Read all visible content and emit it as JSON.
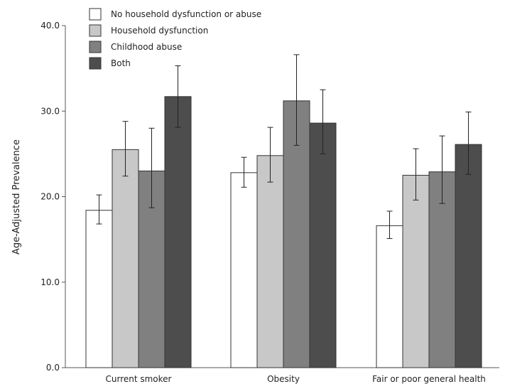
{
  "chart_data": {
    "type": "bar",
    "ylabel": "Age-Adjusted Prevalence",
    "ylim": [
      0,
      40
    ],
    "yticks": [
      "0.0",
      "10.0",
      "20.0",
      "30.0",
      "40.0"
    ],
    "grid": false,
    "legend_position": "top-left",
    "categories": [
      "Current smoker",
      "Obesity",
      "Fair or poor general health"
    ],
    "series": [
      {
        "name": "No household dysfunction or abuse",
        "color": "#ffffff",
        "values": [
          18.4,
          22.8,
          16.6
        ],
        "err_low": [
          16.8,
          21.1,
          15.1
        ],
        "err_high": [
          20.2,
          24.6,
          18.3
        ]
      },
      {
        "name": "Household dysfunction",
        "color": "#c8c8c8",
        "values": [
          25.5,
          24.8,
          22.5
        ],
        "err_low": [
          22.4,
          21.7,
          19.6
        ],
        "err_high": [
          28.8,
          28.1,
          25.6
        ]
      },
      {
        "name": "Childhood abuse",
        "color": "#808080",
        "values": [
          23.0,
          31.2,
          22.9
        ],
        "err_low": [
          18.7,
          26.0,
          19.2
        ],
        "err_high": [
          28.0,
          36.6,
          27.1
        ]
      },
      {
        "name": "Both",
        "color": "#4d4d4d",
        "values": [
          31.7,
          28.6,
          26.1
        ],
        "err_low": [
          28.1,
          25.0,
          22.6
        ],
        "err_high": [
          35.3,
          32.5,
          29.9
        ]
      }
    ]
  }
}
